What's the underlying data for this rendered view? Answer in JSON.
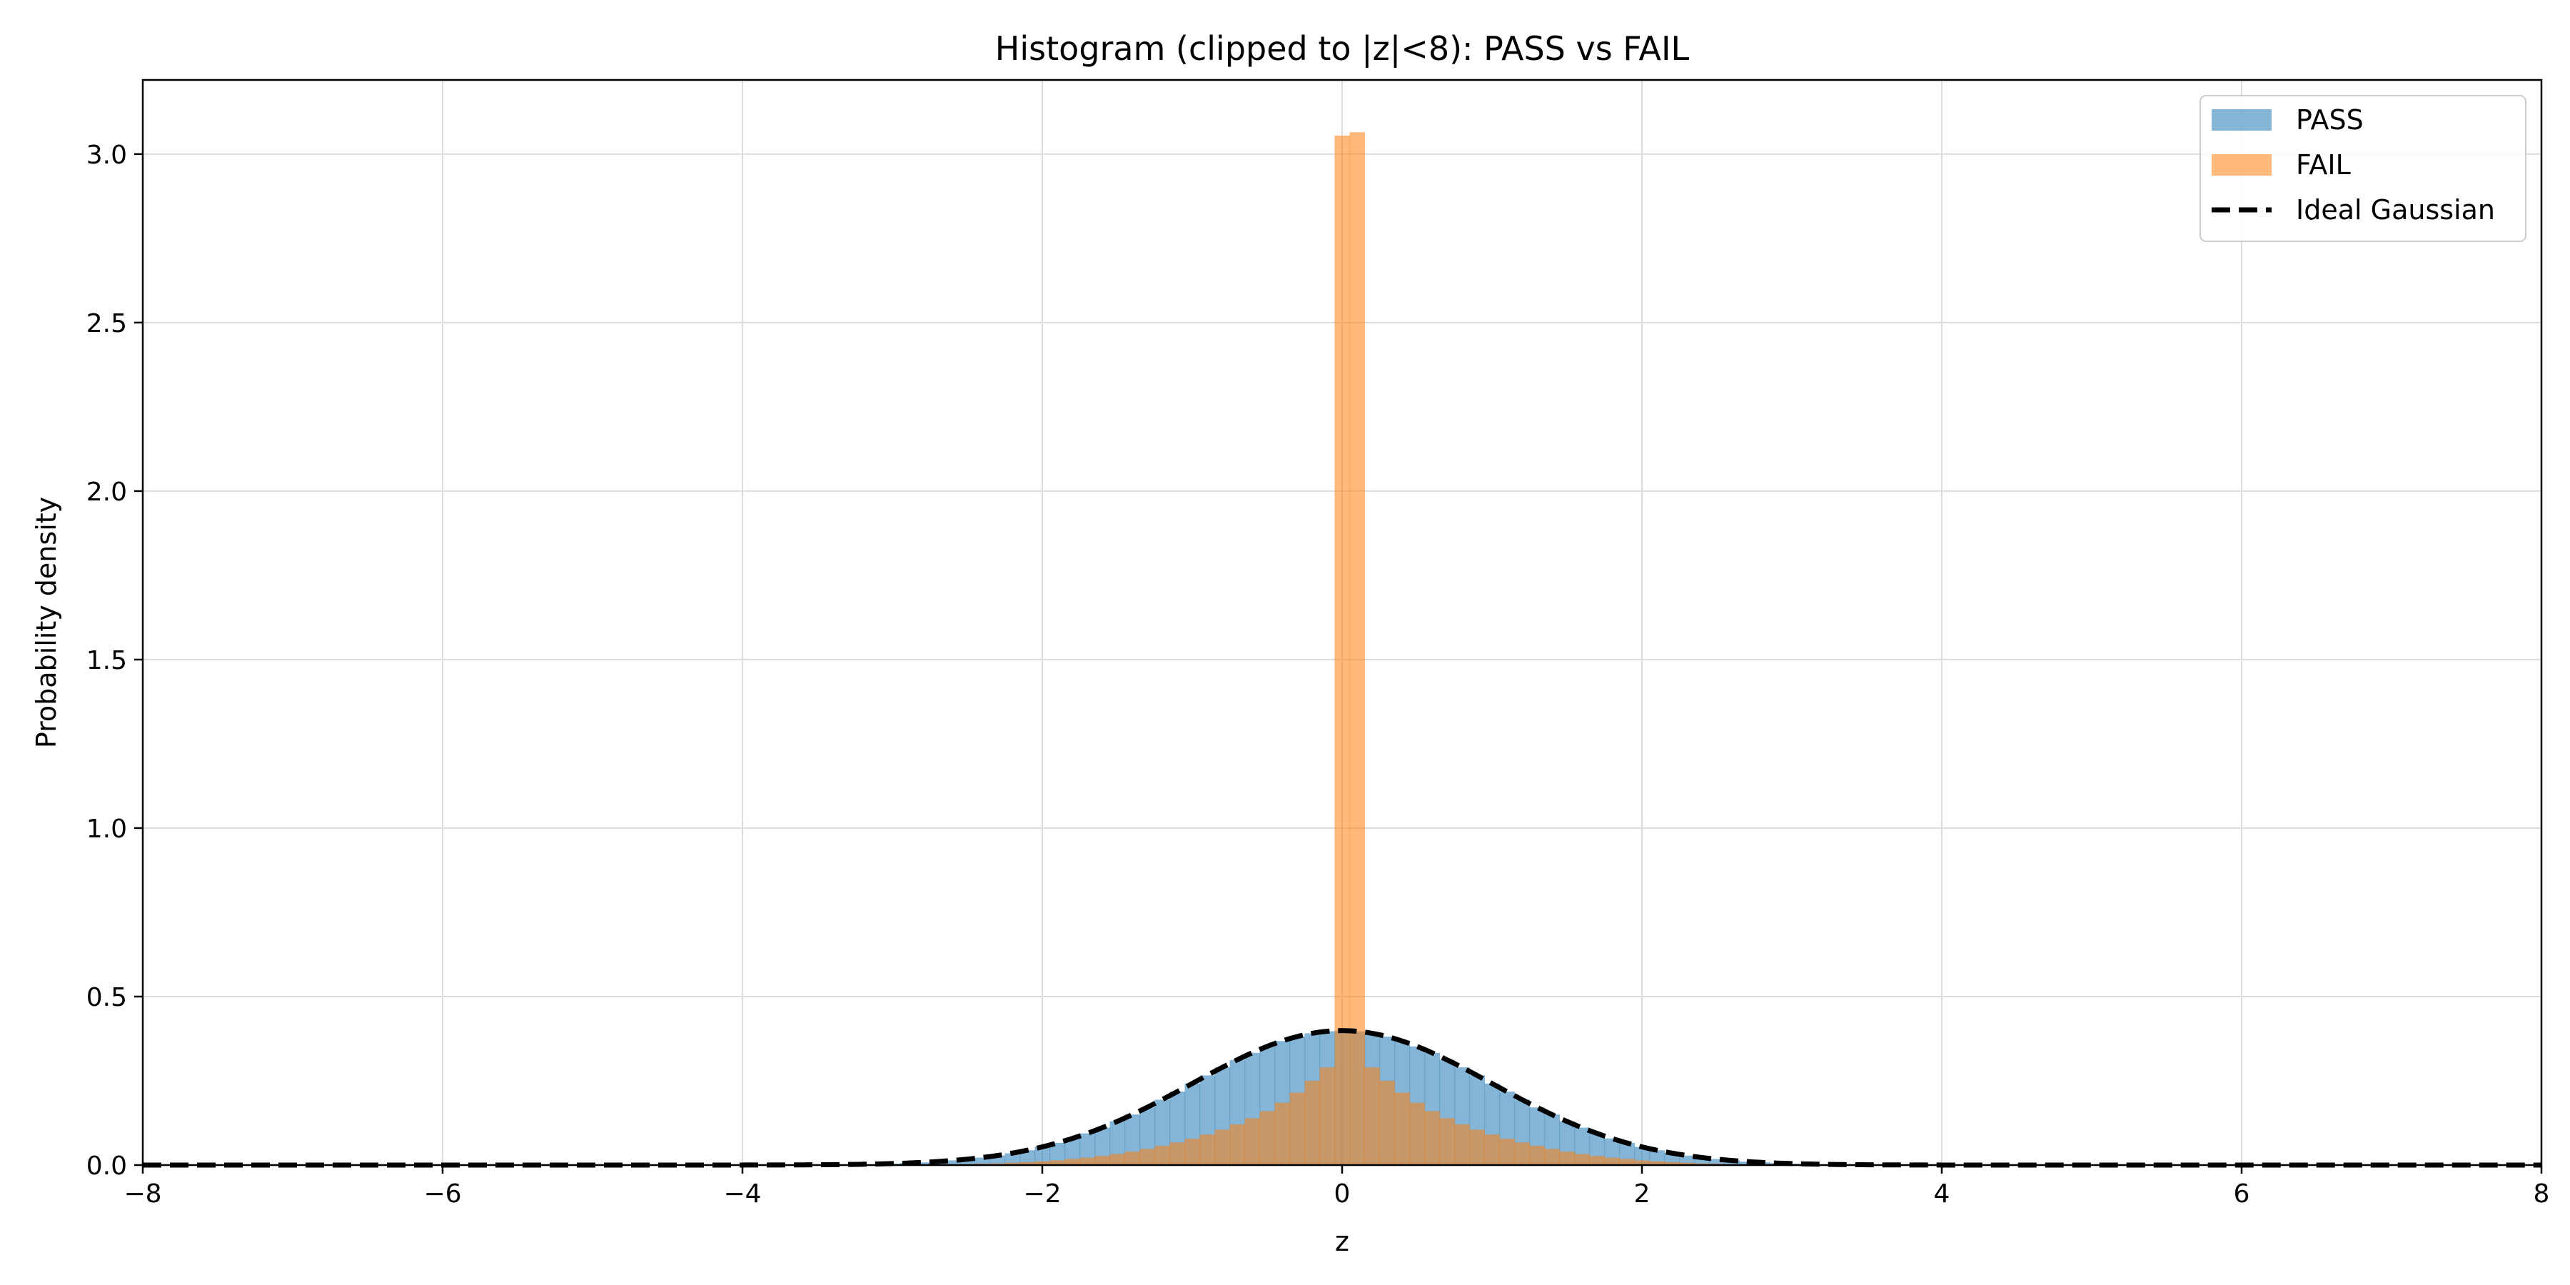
{
  "chart_data": {
    "type": "bar",
    "title": "Histogram (clipped to |z|<8): PASS vs FAIL",
    "xlabel": "z",
    "ylabel": "Probability density",
    "xlim": [
      -8,
      8
    ],
    "ylim": [
      0,
      3.22
    ],
    "xticks": [
      -8,
      -6,
      -4,
      -2,
      0,
      2,
      4,
      6,
      8
    ],
    "xtick_labels": [
      "−8",
      "−6",
      "−4",
      "−2",
      "0",
      "2",
      "4",
      "6",
      "8"
    ],
    "yticks": [
      0.0,
      0.5,
      1.0,
      1.5,
      2.0,
      2.5,
      3.0
    ],
    "ytick_labels": [
      "0.0",
      "0.5",
      "1.0",
      "1.5",
      "2.0",
      "2.5",
      "3.0"
    ],
    "grid": true,
    "legend_position": "top-right",
    "bin_width": 0.1,
    "series": [
      {
        "name": "PASS",
        "kind": "histogram",
        "color": "#1f77b4",
        "opacity": 0.55,
        "bin_centers": [
          -3.0,
          -2.9,
          -2.8,
          -2.7,
          -2.6,
          -2.5,
          -2.4,
          -2.3,
          -2.2,
          -2.1,
          -2.0,
          -1.9,
          -1.8,
          -1.7,
          -1.6,
          -1.5,
          -1.4,
          -1.3,
          -1.2,
          -1.1,
          -1.0,
          -0.9,
          -0.8,
          -0.7,
          -0.6,
          -0.5,
          -0.4,
          -0.3,
          -0.2,
          -0.1,
          0.0,
          0.1,
          0.2,
          0.3,
          0.4,
          0.5,
          0.6,
          0.7,
          0.8,
          0.9,
          1.0,
          1.1,
          1.2,
          1.3,
          1.4,
          1.5,
          1.6,
          1.7,
          1.8,
          1.9,
          2.0,
          2.1,
          2.2,
          2.3,
          2.4,
          2.5,
          2.6,
          2.7,
          2.8,
          2.9,
          3.0
        ],
        "values": [
          0.004,
          0.006,
          0.008,
          0.01,
          0.014,
          0.018,
          0.022,
          0.028,
          0.035,
          0.044,
          0.054,
          0.066,
          0.079,
          0.094,
          0.111,
          0.13,
          0.15,
          0.171,
          0.194,
          0.218,
          0.242,
          0.266,
          0.29,
          0.312,
          0.333,
          0.352,
          0.368,
          0.381,
          0.391,
          0.397,
          0.399,
          0.397,
          0.391,
          0.381,
          0.368,
          0.352,
          0.333,
          0.312,
          0.29,
          0.266,
          0.242,
          0.218,
          0.194,
          0.171,
          0.15,
          0.13,
          0.111,
          0.094,
          0.079,
          0.066,
          0.054,
          0.044,
          0.035,
          0.028,
          0.022,
          0.018,
          0.014,
          0.01,
          0.008,
          0.006,
          0.004
        ]
      },
      {
        "name": "FAIL",
        "kind": "histogram",
        "color": "#ff7f0e",
        "opacity": 0.55,
        "bin_centers": [
          -2.5,
          -2.4,
          -2.3,
          -2.2,
          -2.1,
          -2.0,
          -1.9,
          -1.8,
          -1.7,
          -1.6,
          -1.5,
          -1.4,
          -1.3,
          -1.2,
          -1.1,
          -1.0,
          -0.9,
          -0.8,
          -0.7,
          -0.6,
          -0.5,
          -0.4,
          -0.3,
          -0.2,
          -0.1,
          0.0,
          0.1,
          0.2,
          0.3,
          0.4,
          0.5,
          0.6,
          0.7,
          0.8,
          0.9,
          1.0,
          1.1,
          1.2,
          1.3,
          1.4,
          1.5,
          1.6,
          1.7,
          1.8,
          1.9,
          2.0,
          2.1,
          2.2,
          2.3,
          2.4,
          2.5
        ],
        "values": [
          0.003,
          0.004,
          0.005,
          0.007,
          0.009,
          0.011,
          0.014,
          0.018,
          0.022,
          0.027,
          0.033,
          0.04,
          0.048,
          0.057,
          0.067,
          0.078,
          0.091,
          0.105,
          0.121,
          0.139,
          0.16,
          0.185,
          0.215,
          0.25,
          0.29,
          3.055,
          3.065,
          0.29,
          0.25,
          0.215,
          0.185,
          0.16,
          0.139,
          0.121,
          0.105,
          0.091,
          0.078,
          0.067,
          0.057,
          0.048,
          0.04,
          0.033,
          0.027,
          0.022,
          0.018,
          0.014,
          0.011,
          0.009,
          0.007,
          0.005,
          0.004
        ]
      },
      {
        "name": "Ideal Gaussian",
        "kind": "line",
        "color": "#000000",
        "style": "dashed",
        "function": "standard-normal-pdf"
      }
    ]
  }
}
